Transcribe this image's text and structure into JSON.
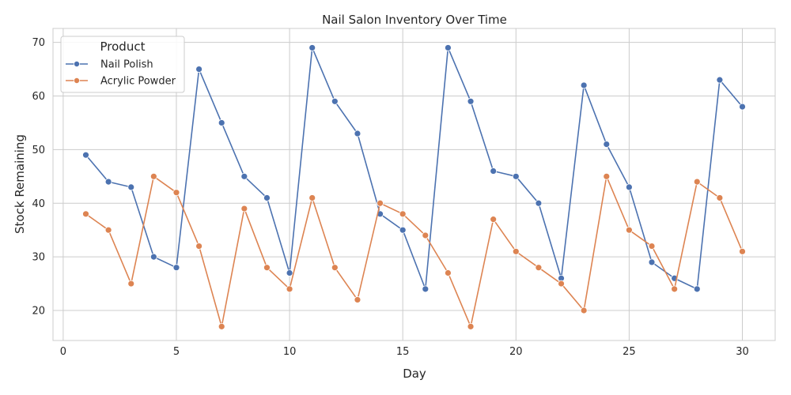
{
  "chart_data": {
    "type": "line",
    "title": "Nail Salon Inventory Over Time",
    "xlabel": "Day",
    "ylabel": "Stock Remaining",
    "xlim": [
      -0.45,
      31.45
    ],
    "ylim": [
      14.4,
      72.6
    ],
    "x_ticks": [
      0,
      5,
      10,
      15,
      20,
      25,
      30
    ],
    "y_ticks": [
      20,
      30,
      40,
      50,
      60,
      70
    ],
    "grid": true,
    "legend_title": "Product",
    "legend_position": "top-left",
    "x": [
      1,
      2,
      3,
      4,
      5,
      6,
      7,
      8,
      9,
      10,
      11,
      12,
      13,
      14,
      15,
      16,
      17,
      18,
      19,
      20,
      21,
      22,
      23,
      24,
      25,
      26,
      27,
      28,
      29,
      30
    ],
    "series": [
      {
        "name": "Nail Polish",
        "color": "#4c72b0",
        "values": [
          49,
          44,
          43,
          30,
          28,
          65,
          55,
          45,
          41,
          27,
          69,
          59,
          53,
          38,
          35,
          24,
          69,
          59,
          46,
          45,
          40,
          26,
          62,
          51,
          43,
          29,
          26,
          24,
          63,
          58
        ]
      },
      {
        "name": "Acrylic Powder",
        "color": "#dd8452",
        "values": [
          38,
          35,
          25,
          45,
          42,
          32,
          17,
          39,
          28,
          24,
          41,
          28,
          22,
          40,
          38,
          34,
          27,
          17,
          37,
          31,
          28,
          25,
          20,
          45,
          35,
          32,
          24,
          44,
          41,
          31
        ]
      }
    ]
  }
}
